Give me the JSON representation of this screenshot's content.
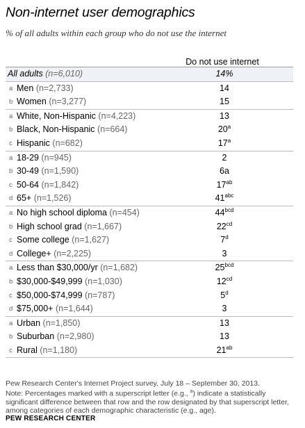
{
  "chart_data": {
    "type": "table",
    "title": "Non-internet user demographics",
    "subtitle": "% of all adults within each group who do not use the internet",
    "column_header": "Do not use internet",
    "rows": [
      {
        "letter": "",
        "label": "All adults",
        "n": "(n=6,010)",
        "value": "14%",
        "sup": "",
        "group": "all",
        "sep": true
      },
      {
        "letter": "a",
        "label": "Men",
        "n": "(n=2,733)",
        "value": "14",
        "sup": "",
        "group": "sex"
      },
      {
        "letter": "b",
        "label": "Women",
        "n": "(n=3,277)",
        "value": "15",
        "sup": "",
        "group": "sex",
        "sep": true
      },
      {
        "letter": "a",
        "label": "White, Non-Hispanic",
        "n": "(n=4,223)",
        "value": "13",
        "sup": "",
        "group": "race"
      },
      {
        "letter": "b",
        "label": "Black, Non-Hispanic",
        "n": "(n=664)",
        "value": "20",
        "sup": "a",
        "group": "race"
      },
      {
        "letter": "c",
        "label": "Hispanic",
        "n": "(n=682)",
        "value": "17",
        "sup": "a",
        "group": "race",
        "sep": true
      },
      {
        "letter": "a",
        "label": "18-29",
        "n": "(n=945)",
        "value": "2",
        "sup": "",
        "group": "age"
      },
      {
        "letter": "b",
        "label": "30-49",
        "n": "(n=1,590)",
        "value": "6a",
        "sup": "",
        "group": "age"
      },
      {
        "letter": "c",
        "label": "50-64",
        "n": "(n=1,842)",
        "value": "17",
        "sup": "ab",
        "group": "age"
      },
      {
        "letter": "d",
        "label": "65+",
        "n": "(n=1,526)",
        "value": "41",
        "sup": "abc",
        "group": "age",
        "sep": true
      },
      {
        "letter": "a",
        "label": "No high school diploma",
        "n": "(n=454)",
        "value": "44",
        "sup": "bcd",
        "group": "edu"
      },
      {
        "letter": "b",
        "label": "High school grad",
        "n": "(n=1,667)",
        "value": "22",
        "sup": "cd",
        "group": "edu"
      },
      {
        "letter": "c",
        "label": "Some college",
        "n": "(n=1,627)",
        "value": "7",
        "sup": "d",
        "group": "edu"
      },
      {
        "letter": "d",
        "label": "College+",
        "n": "(n=2,225)",
        "value": "3",
        "sup": "",
        "group": "edu",
        "sep": true
      },
      {
        "letter": "a",
        "label": "Less than $30,000/yr",
        "n": "(n=1,682)",
        "value": "25",
        "sup": "bcd",
        "group": "income"
      },
      {
        "letter": "b",
        "label": "$30,000-$49,999",
        "n": "(n=1,030)",
        "value": "12",
        "sup": "cd",
        "group": "income"
      },
      {
        "letter": "c",
        "label": "$50,000-$74,999",
        "n": "(n=787)",
        "value": "5",
        "sup": "d",
        "group": "income"
      },
      {
        "letter": "d",
        "label": "$75,000+",
        "n": "(n=1,644)",
        "value": "3",
        "sup": "",
        "group": "income",
        "sep": true
      },
      {
        "letter": "a",
        "label": "Urban",
        "n": "(n=1,850)",
        "value": "13",
        "sup": "",
        "group": "community"
      },
      {
        "letter": "b",
        "label": "Suburban",
        "n": "(n=2,980)",
        "value": "13",
        "sup": "",
        "group": "community"
      },
      {
        "letter": "c",
        "label": "Rural",
        "n": "(n=1,180)",
        "value": "21",
        "sup": "ab",
        "group": "community",
        "sep": true
      }
    ]
  },
  "footer": {
    "source": "Pew Research Center's Internet Project survey, July 18 – September 30, 2013.",
    "note_before": "Note: Percentages marked with a superscript letter (e.g., ",
    "note_sup": "a",
    "note_after": ") indicate a statistically significant difference between that row and the row designated by that superscript letter, among categories of each demographic characteristic (e.g., age).",
    "brand": "PEW RESEARCH CENTER"
  }
}
